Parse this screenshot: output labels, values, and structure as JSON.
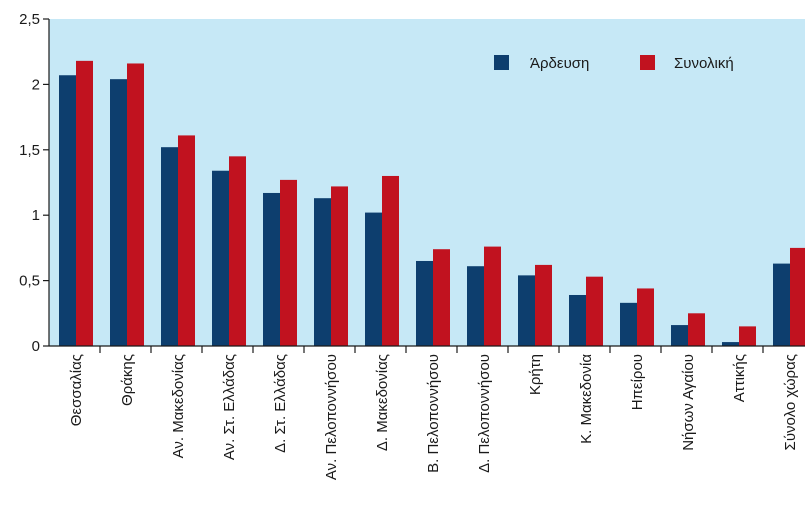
{
  "chart_data": {
    "type": "bar",
    "title": "",
    "xlabel": "",
    "ylabel": "",
    "ylim": [
      0,
      2.5
    ],
    "yticks": [
      "0",
      "0,5",
      "1",
      "1,5",
      "2",
      "2,5"
    ],
    "grid": false,
    "legend_position": "top-right",
    "background_color": "#c6e8f6",
    "categories": [
      "Θεσσαλίας",
      "Θράκης",
      "Αν. Μακεδονίας",
      "Αν. Στ. Ελλάδας",
      "Δ. Στ. Ελλάδας",
      "Αν. Πελοποννήσου",
      "Δ. Μακεδονίας",
      "Β. Πελοποννήσου",
      "Δ. Πελοποννήσου",
      "Κρήτη",
      "Κ. Μακεδονία",
      "Ηπείρου",
      "Νήσων Αγαίου",
      "Αττικής",
      "Σύνολο χώρας"
    ],
    "series": [
      {
        "name": "Άρδευση",
        "color": "#0d3e6e",
        "values": [
          2.07,
          2.04,
          1.52,
          1.34,
          1.17,
          1.13,
          1.02,
          0.65,
          0.61,
          0.54,
          0.39,
          0.33,
          0.16,
          0.03,
          0.63
        ]
      },
      {
        "name": "Συνολική",
        "color": "#c1121f",
        "values": [
          2.18,
          2.16,
          1.61,
          1.45,
          1.27,
          1.22,
          1.3,
          0.74,
          0.76,
          0.62,
          0.53,
          0.44,
          0.25,
          0.15,
          0.75
        ]
      }
    ]
  }
}
